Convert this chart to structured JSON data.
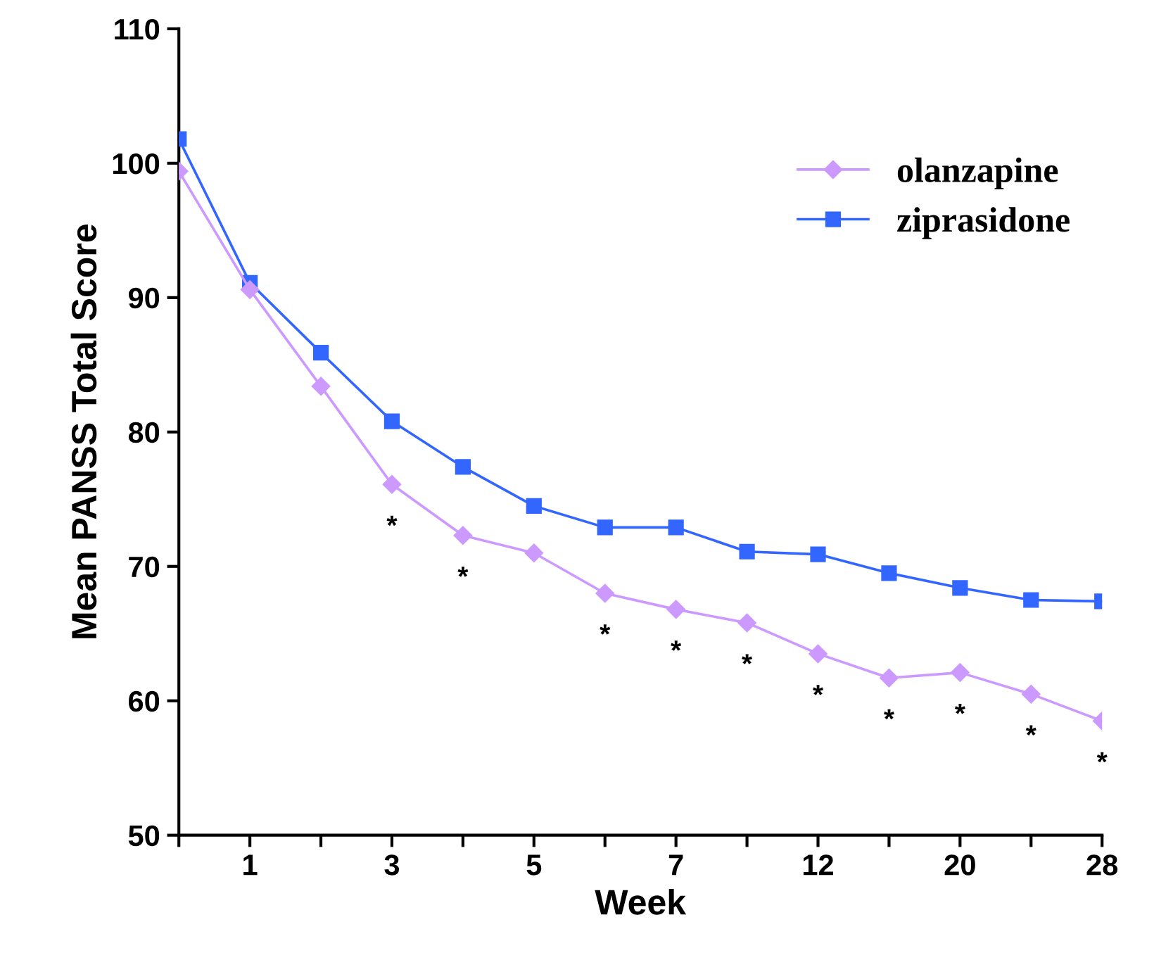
{
  "chart_data": {
    "type": "line",
    "xlabel": "Week",
    "ylabel": "Mean PANSS Total Score",
    "categories": [
      null,
      "1",
      null,
      "3",
      null,
      "5",
      null,
      "7",
      null,
      "12",
      null,
      "20",
      null,
      "28"
    ],
    "series": [
      {
        "name": "olanzapine",
        "color": "#cc99ff",
        "marker": "diamond",
        "values": [
          99.4,
          90.6,
          83.4,
          76.1,
          72.3,
          71.0,
          68.0,
          66.8,
          65.8,
          63.5,
          61.7,
          62.1,
          60.5,
          58.5
        ],
        "value_labels": [
          null,
          null,
          null,
          "*",
          "*",
          null,
          "*",
          "*",
          "*",
          "*",
          "*",
          "*",
          "*",
          "*"
        ]
      },
      {
        "name": "ziprasidone",
        "color": "#3366ff",
        "marker": "square",
        "values": [
          101.8,
          91.1,
          85.9,
          80.8,
          77.4,
          74.5,
          72.9,
          72.9,
          71.1,
          70.9,
          69.5,
          68.4,
          67.5,
          67.4
        ]
      }
    ],
    "ylim": [
      50,
      110
    ],
    "yticks": [
      50,
      60,
      70,
      80,
      90,
      100,
      110
    ],
    "grid": false,
    "legend": "top right",
    "line_style": "solid"
  }
}
